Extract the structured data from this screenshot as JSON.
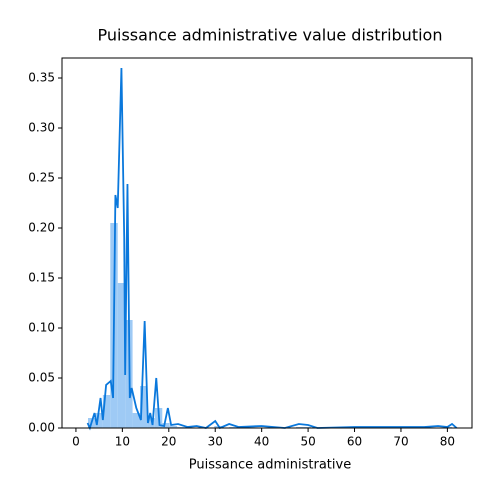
{
  "chart_data": {
    "type": "histogram",
    "title": "Puissance administrative value distribution",
    "xlabel": "Puissance administrative",
    "color": "#94c4f4",
    "bins": [
      2.6,
      4.2,
      5.8,
      7.4,
      9.0,
      10.6,
      12.2,
      13.8,
      15.4,
      17.0,
      18.6,
      20.2,
      21.8,
      23.4,
      25.0,
      26.6,
      28.2,
      29.8,
      31.4,
      33.0,
      34.6,
      36.2,
      37.8,
      39.4,
      41.0,
      42.6,
      44.2,
      45.8,
      47.4,
      49.0,
      50.6,
      52.2,
      53.8,
      55.4,
      57.0,
      58.6,
      60.2,
      61.8,
      63.4,
      65.0,
      66.6,
      68.2,
      69.8,
      71.4,
      73.0,
      74.6,
      76.2,
      77.8,
      79.4,
      81.0
    ],
    "values": [
      0.01,
      0.015,
      0.033,
      0.205,
      0.145,
      0.108,
      0.015,
      0.042,
      0.01,
      0.02,
      0.005,
      0.002,
      0.001,
      0.001,
      0.0005,
      0,
      0,
      0.002,
      0,
      0.001,
      0,
      0,
      0,
      0.0005,
      0,
      0,
      0,
      0,
      0.001,
      0.001,
      0,
      0,
      0,
      0,
      0,
      0,
      0,
      0,
      0,
      0,
      0,
      0,
      0,
      0,
      0,
      0,
      0,
      0.0005,
      0.001
    ],
    "kde": {
      "color": "#0a78dc",
      "x": [
        2.5,
        3,
        4,
        4.5,
        5.3,
        5.8,
        6.5,
        7.5,
        8,
        8.5,
        9,
        9.8,
        10.4,
        10.6,
        11.1,
        11.6,
        12,
        13,
        14,
        14.8,
        15.5,
        16,
        16.5,
        17.3,
        18,
        19,
        19.8,
        20.5,
        22,
        24,
        26,
        28,
        30,
        31,
        33,
        35,
        40,
        45,
        48,
        50,
        52,
        60,
        70,
        75,
        78,
        80,
        81,
        82
      ],
      "y": [
        0.005,
        0,
        0.015,
        0.003,
        0.03,
        0.008,
        0.043,
        0.047,
        0.03,
        0.233,
        0.22,
        0.36,
        0.19,
        0.053,
        0.244,
        0.03,
        0.04,
        0.02,
        0.008,
        0.107,
        0.005,
        0.015,
        0.003,
        0.05,
        0.003,
        0.002,
        0.02,
        0.003,
        0.004,
        0.001,
        0.002,
        0,
        0.007,
        0,
        0.004,
        0.001,
        0.002,
        0,
        0.004,
        0.003,
        0,
        0.001,
        0.001,
        0.001,
        0.002,
        0.001,
        0.004,
        0
      ]
    },
    "xlim": [
      -3,
      85.3
    ],
    "ylim": [
      0,
      0.37
    ],
    "xticks": [
      0,
      10,
      20,
      30,
      40,
      50,
      60,
      70,
      80
    ],
    "yticks": [
      {
        "value": 0,
        "label": "0.00"
      },
      {
        "value": 0.05,
        "label": "0.05"
      },
      {
        "value": 0.1,
        "label": "0.10"
      },
      {
        "value": 0.15,
        "label": "0.15"
      },
      {
        "value": 0.2,
        "label": "0.20"
      },
      {
        "value": 0.25,
        "label": "0.25"
      },
      {
        "value": 0.3,
        "label": "0.30"
      },
      {
        "value": 0.35,
        "label": "0.35"
      }
    ]
  }
}
